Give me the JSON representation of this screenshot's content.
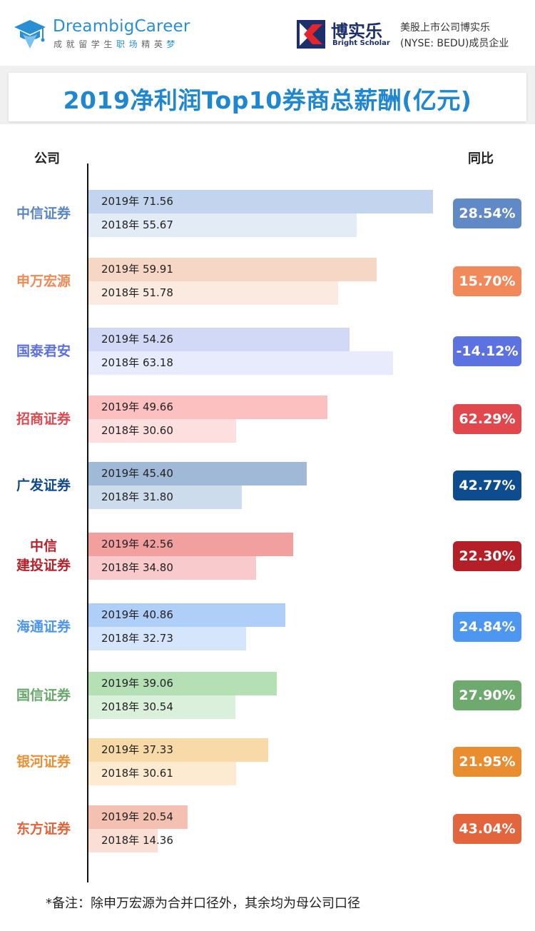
{
  "header": {
    "brand": "DreambigCareer",
    "brand_sub_a": "成就留学生",
    "brand_sub_b": "职场",
    "brand_sub_c": "精英",
    "brand_sub_d": "梦",
    "partner_name": "博实乐",
    "partner_en": "Bright Scholar",
    "partner_desc_1": "美股上市公司博实乐",
    "partner_desc_2": "(NYSE: BEDU)成员企业",
    "icons": [
      "graduation-cap-logo",
      "bright-scholar-logo"
    ]
  },
  "chart_data": {
    "type": "bar",
    "title": "2019净利润Top10券商总薪酬(亿元)",
    "category_header": "公司",
    "yoy_header": "同比",
    "unit": "亿元",
    "year_labels": [
      "2019年",
      "2018年"
    ],
    "xlim": [
      0,
      72
    ],
    "categories": [
      {
        "name": "中信证券",
        "v2019": 71.56,
        "v2018": 55.67,
        "yoy": "28.54%"
      },
      {
        "name": "申万宏源",
        "v2019": 59.91,
        "v2018": 51.78,
        "yoy": "15.70%"
      },
      {
        "name": "国泰君安",
        "v2019": 54.26,
        "v2018": 63.18,
        "yoy": "-14.12%"
      },
      {
        "name": "招商证券",
        "v2019": 49.66,
        "v2018": 30.6,
        "yoy": "62.29%"
      },
      {
        "name": "广发证券",
        "v2019": 45.4,
        "v2018": 31.8,
        "yoy": "42.77%"
      },
      {
        "name": "中信\n建投证券",
        "v2019": 42.56,
        "v2018": 34.8,
        "yoy": "22.30%"
      },
      {
        "name": "海通证券",
        "v2019": 40.86,
        "v2018": 32.73,
        "yoy": "24.84%"
      },
      {
        "name": "国信证券",
        "v2019": 39.06,
        "v2018": 30.54,
        "yoy": "27.90%"
      },
      {
        "name": "银河证券",
        "v2019": 37.33,
        "v2018": 30.61,
        "yoy": "21.95%"
      },
      {
        "name": "东方证券",
        "v2019": 20.54,
        "v2018": 14.36,
        "yoy": "43.04%"
      }
    ],
    "colors": [
      {
        "text": "#5b86c5",
        "bar2019": "#c3d4ee",
        "bar2018": "#e3ebf7",
        "badge": "#6189c6"
      },
      {
        "text": "#ee8a55",
        "bar2019": "#f6d7c6",
        "bar2018": "#fbeae0",
        "badge": "#f2895a"
      },
      {
        "text": "#5b70e0",
        "bar2019": "#d2d9f6",
        "bar2018": "#e7ebfb",
        "badge": "#5c72e0"
      },
      {
        "text": "#e0494f",
        "bar2019": "#fcc0c1",
        "bar2018": "#fddfe0",
        "badge": "#e0484d"
      },
      {
        "text": "#0f4a8a",
        "bar2019": "#9fb9d7",
        "bar2018": "#cddcec",
        "badge": "#0d4c8e"
      },
      {
        "text": "#b5222b",
        "bar2019": "#f29fa0",
        "bar2018": "#f8cacb",
        "badge": "#b51f27"
      },
      {
        "text": "#4d95f0",
        "bar2019": "#afcff9",
        "bar2018": "#d5e6fc",
        "badge": "#4e97f1"
      },
      {
        "text": "#6aa76a",
        "bar2019": "#b5e0b6",
        "bar2018": "#daf0da",
        "badge": "#6ea96e"
      },
      {
        "text": "#ec8f33",
        "bar2019": "#f8d9a8",
        "bar2018": "#fcebd1",
        "badge": "#e88d30"
      },
      {
        "text": "#e2643b",
        "bar2019": "#f3c0b1",
        "bar2018": "#f9dfd6",
        "badge": "#e2653d"
      }
    ]
  },
  "footer": {
    "note": "*备注：除申万宏源为合并口径外，其余均为母公司口径"
  }
}
